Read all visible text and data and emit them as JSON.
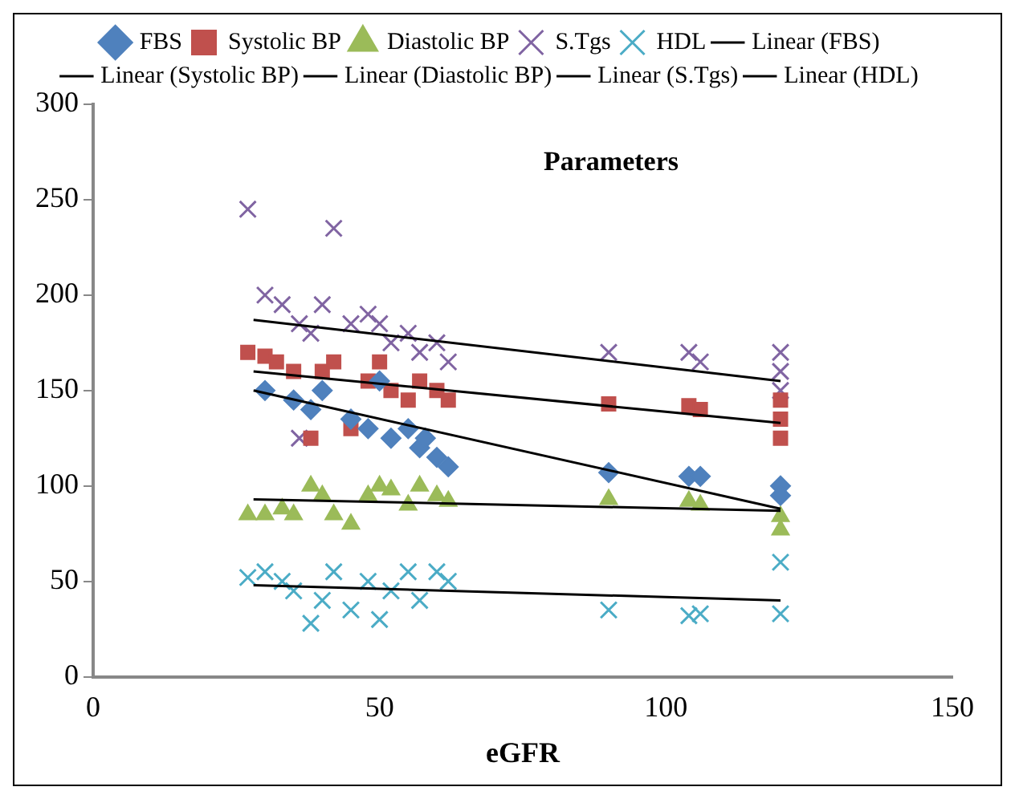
{
  "chart_data": {
    "type": "scatter",
    "title": "Parameters",
    "xlabel": "eGFR",
    "xlim": [
      0,
      150
    ],
    "ylim": [
      0,
      300
    ],
    "xticks": [
      0,
      50,
      100,
      150
    ],
    "yticks": [
      0,
      50,
      100,
      150,
      200,
      250,
      300
    ],
    "grid": false,
    "legend": "top",
    "series": [
      {
        "name": "FBS",
        "type": "scatter",
        "marker": "diamond",
        "color": "#4f81bd",
        "x": [
          30,
          35,
          38,
          40,
          45,
          48,
          50,
          52,
          55,
          57,
          58,
          60,
          62,
          90,
          104,
          106,
          120,
          120
        ],
        "values": [
          150,
          145,
          140,
          150,
          135,
          130,
          155,
          125,
          130,
          120,
          125,
          115,
          110,
          107,
          105,
          105,
          100,
          95
        ]
      },
      {
        "name": "Systolic BP",
        "type": "scatter",
        "marker": "square",
        "color": "#c0504d",
        "x": [
          27,
          30,
          32,
          35,
          38,
          40,
          42,
          45,
          48,
          50,
          52,
          55,
          57,
          60,
          62,
          90,
          104,
          106,
          120,
          120,
          120
        ],
        "values": [
          170,
          168,
          165,
          160,
          125,
          160,
          165,
          130,
          155,
          165,
          150,
          145,
          155,
          150,
          145,
          143,
          142,
          140,
          145,
          135,
          125
        ]
      },
      {
        "name": "Diastolic BP",
        "type": "scatter",
        "marker": "triangle",
        "color": "#9bbb59",
        "x": [
          27,
          30,
          33,
          35,
          38,
          40,
          42,
          45,
          48,
          50,
          52,
          55,
          57,
          60,
          62,
          90,
          104,
          106,
          120,
          120
        ],
        "values": [
          85,
          85,
          88,
          85,
          100,
          95,
          85,
          80,
          95,
          100,
          98,
          90,
          100,
          95,
          92,
          93,
          92,
          90,
          84,
          77
        ]
      },
      {
        "name": "S.Tgs",
        "type": "scatter",
        "marker": "cross",
        "color": "#8064a2",
        "x": [
          27,
          30,
          33,
          36,
          36,
          38,
          40,
          42,
          45,
          48,
          50,
          52,
          55,
          57,
          60,
          62,
          90,
          104,
          106,
          120,
          120,
          120
        ],
        "values": [
          245,
          200,
          195,
          185,
          125,
          180,
          195,
          235,
          185,
          190,
          185,
          175,
          180,
          170,
          175,
          165,
          170,
          170,
          165,
          170,
          160,
          150
        ]
      },
      {
        "name": "HDL",
        "type": "scatter",
        "marker": "cross",
        "color": "#4bacc6",
        "x": [
          27,
          30,
          33,
          35,
          38,
          40,
          42,
          45,
          48,
          50,
          52,
          55,
          57,
          60,
          62,
          90,
          104,
          106,
          120,
          120
        ],
        "values": [
          52,
          55,
          50,
          45,
          28,
          40,
          55,
          35,
          50,
          30,
          45,
          55,
          40,
          55,
          50,
          35,
          32,
          33,
          60,
          33
        ]
      },
      {
        "name": "Linear (FBS)",
        "type": "line",
        "marker": "none",
        "color": "#000000",
        "x": [
          28,
          120
        ],
        "values": [
          150,
          88
        ]
      },
      {
        "name": "Linear (Systolic BP)",
        "type": "line",
        "marker": "none",
        "color": "#000000",
        "x": [
          28,
          120
        ],
        "values": [
          160,
          133
        ]
      },
      {
        "name": "Linear (Diastolic BP)",
        "type": "line",
        "marker": "none",
        "color": "#000000",
        "x": [
          28,
          120
        ],
        "values": [
          93,
          87
        ]
      },
      {
        "name": "Linear (S.Tgs)",
        "type": "line",
        "marker": "none",
        "color": "#000000",
        "x": [
          28,
          120
        ],
        "values": [
          187,
          155
        ]
      },
      {
        "name": "Linear (HDL)",
        "type": "line",
        "marker": "none",
        "color": "#000000",
        "x": [
          28,
          120
        ],
        "values": [
          48,
          40
        ]
      }
    ]
  }
}
